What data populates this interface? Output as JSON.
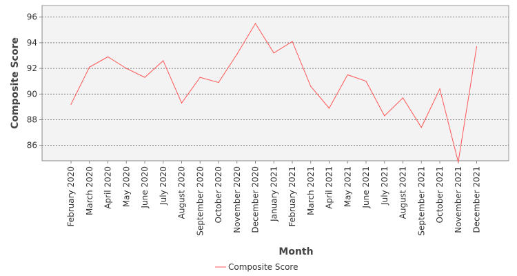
{
  "chart_data": {
    "type": "line",
    "title": "",
    "xlabel": "Month",
    "ylabel": "Composite Score",
    "categories": [
      "February 2020",
      "March 2020",
      "April 2020",
      "May 2020",
      "June 2020",
      "July 2020",
      "August 2020",
      "September 2020",
      "October 2020",
      "November 2020",
      "December 2020",
      "January 2021",
      "February 2021",
      "March 2021",
      "April 2021",
      "May 2021",
      "June 2021",
      "July 2021",
      "August 2021",
      "September 2021",
      "October 2021",
      "November 2021",
      "December 2021"
    ],
    "series": [
      {
        "name": "Composite Score",
        "color": "#ff5555",
        "values": [
          89.2,
          92.1,
          92.9,
          92.0,
          91.3,
          92.6,
          89.3,
          91.3,
          90.9,
          93.1,
          95.5,
          93.2,
          94.1,
          90.6,
          88.9,
          91.5,
          91.0,
          88.3,
          89.7,
          87.4,
          90.4,
          84.7,
          93.7
        ]
      }
    ],
    "ylim": [
      84.8,
      96.9
    ],
    "yticks": [
      86,
      88,
      90,
      92,
      94,
      96
    ],
    "grid": true,
    "legend_position": "bottom-center"
  }
}
